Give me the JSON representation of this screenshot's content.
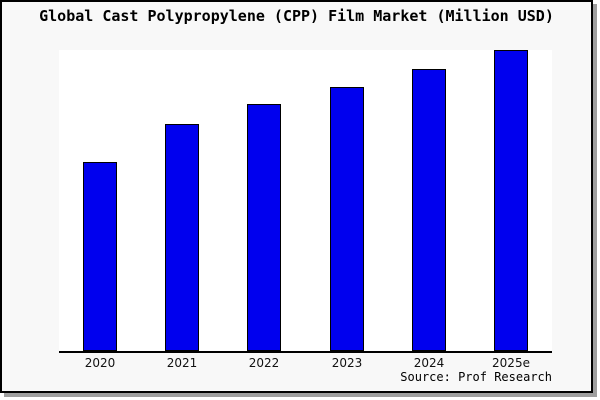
{
  "page": {
    "background": "#ffffff",
    "panel_background": "#f8f8f8",
    "panel_border_color": "#000000",
    "panel_shadow_color": "#9e9e9e"
  },
  "header": {
    "title": "Global Cast Polypropylene (CPP) Film Market (Million USD)"
  },
  "footer": {
    "source": "Source: Prof Research"
  },
  "chart_data": {
    "type": "bar",
    "title": "Global Cast Polypropylene (CPP) Film Market (Million USD)",
    "categories": [
      "2020",
      "2021",
      "2022",
      "2023",
      "2024",
      "2025e"
    ],
    "values_relative_pct_of_max": [
      62.8,
      75.4,
      82.1,
      87.7,
      93.7,
      100
    ],
    "values_note": "Chart shows no y-axis, gridlines or data labels; values are measured relative bar heights as percent of the tallest bar (2025e).",
    "xlabel": "",
    "ylabel": "",
    "y_axis_visible": false,
    "grid": false,
    "legend": false,
    "bar_color": "#0000ee",
    "bar_border_color": "#000000",
    "plot_background": "#ffffff",
    "axis_line_color": "#000000",
    "source": "Source: Prof Research"
  }
}
